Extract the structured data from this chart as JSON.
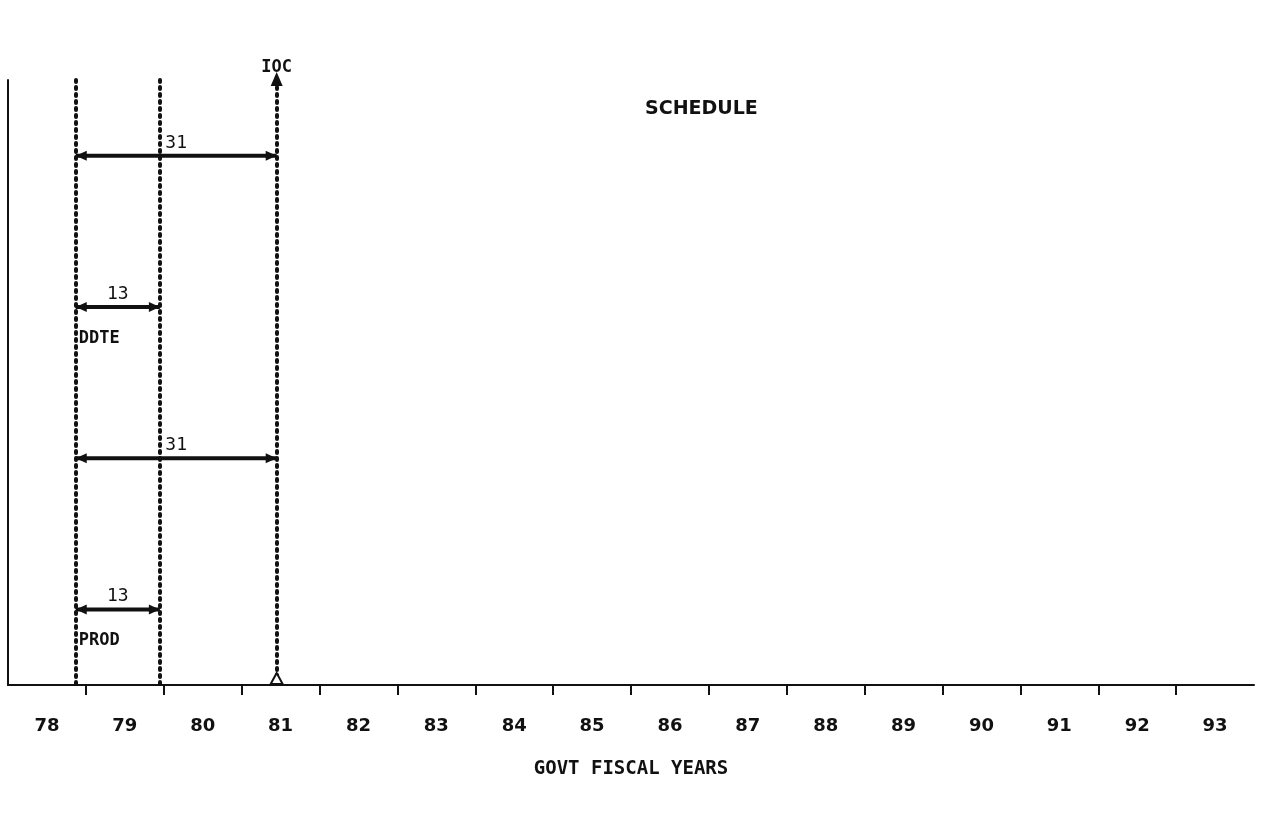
{
  "chart_data": {
    "type": "bar",
    "orientation": "horizontal",
    "title": "SCHEDULE",
    "xlabel": "GOVT FISCAL YEARS",
    "categories": [
      null,
      null,
      null,
      null
    ],
    "base": [
      78.37,
      78.37,
      78.37,
      78.37
    ],
    "values": [
      2.58,
      1.08,
      2.58,
      1.08
    ],
    "color": "#111111",
    "annotations": [
      "31",
      "13",
      "31",
      "13",
      "DDTE",
      "PROD"
    ],
    "ref_lines": [
      {
        "axis": "x",
        "value": 78.37,
        "color": "#111111",
        "line_style": "dotted"
      },
      {
        "axis": "x",
        "value": 79.45,
        "color": "#111111",
        "line_style": "dotted"
      },
      {
        "axis": "x",
        "value": 80.95,
        "label": "IOC",
        "color": "#111111",
        "line_style": "dotted"
      }
    ],
    "xlim": [
      77.5,
      93.5
    ],
    "xticks": [
      78,
      {
        "value": 78.5,
        "label": null
      },
      79,
      {
        "value": 79.5,
        "label": null
      },
      80,
      {
        "value": 80.5,
        "label": null
      },
      81,
      {
        "value": 81.5,
        "label": null
      },
      82,
      {
        "value": 82.5,
        "label": null
      },
      83,
      {
        "value": 83.5,
        "label": null
      },
      84,
      {
        "value": 84.5,
        "label": null
      },
      85,
      {
        "value": 85.5,
        "label": null
      },
      86,
      {
        "value": 86.5,
        "label": null
      },
      87,
      {
        "value": 87.5,
        "label": null
      },
      88,
      {
        "value": 88.5,
        "label": null
      },
      89,
      {
        "value": 89.5,
        "label": null
      },
      90,
      {
        "value": 90.5,
        "label": null
      },
      91,
      {
        "value": 91.5,
        "label": null
      },
      92,
      {
        "value": 92.5,
        "label": null
      },
      93
    ],
    "tick_labels": "x"
  }
}
